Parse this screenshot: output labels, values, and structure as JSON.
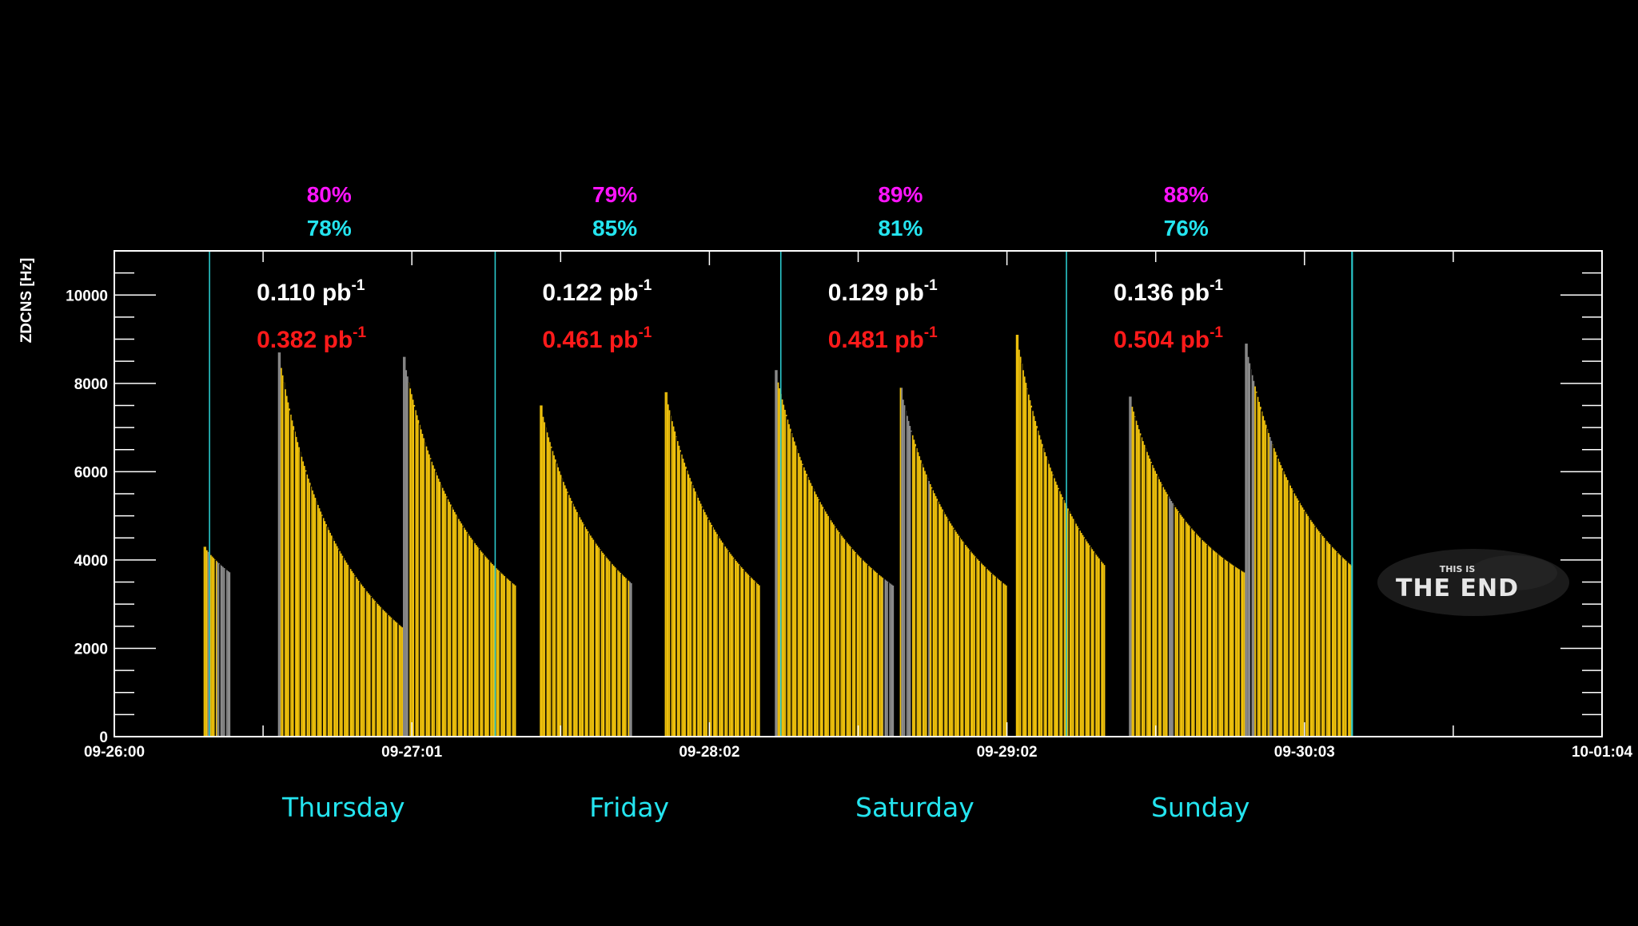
{
  "colors": {
    "background": "#000000",
    "axis": "#ffffff",
    "bar_physics": "#f0c20c",
    "bar_other": "#8c8c8c",
    "day_boundary": "#2ac8cc",
    "pct_top": "#ff14ff",
    "pct_bottom": "#24e4ef",
    "lumi_white": "#ffffff",
    "lumi_red": "#ff1a1a",
    "day_label": "#24e4ef"
  },
  "chart_data": {
    "type": "bar",
    "ylabel": "ZDCNS [Hz]",
    "xlabel": "",
    "ylim": [
      0,
      11000
    ],
    "y_ticks": [
      "0",
      "2000",
      "4000",
      "6000",
      "8000",
      "10000"
    ],
    "x_ticks": [
      "09-26:00",
      "09-27:01",
      "09-28:02",
      "09-29:02",
      "09-30:03",
      "10-01:04"
    ],
    "legend": "none",
    "grid": false,
    "days": [
      {
        "label": "Thursday",
        "pct_top": "80%",
        "pct_bottom": "78%",
        "lumi_white": "0.110",
        "lumi_red": "0.382",
        "unit": "pb",
        "unit_exp": "-1"
      },
      {
        "label": "Friday",
        "pct_top": "79%",
        "pct_bottom": "85%",
        "lumi_white": "0.122",
        "lumi_red": "0.461",
        "unit": "pb",
        "unit_exp": "-1"
      },
      {
        "label": "Saturday",
        "pct_top": "89%",
        "pct_bottom": "81%",
        "lumi_white": "0.129",
        "lumi_red": "0.481",
        "unit": "pb",
        "unit_exp": "-1"
      },
      {
        "label": "Sunday",
        "pct_top": "88%",
        "pct_bottom": "76%",
        "lumi_white": "0.136",
        "lumi_red": "0.504",
        "unit": "pb",
        "unit_exp": "-1"
      }
    ],
    "day_boundaries_days": [
      0.32,
      1.28,
      2.24,
      3.2,
      4.16
    ],
    "fills": [
      {
        "start": 0.3,
        "end": 0.39,
        "peak": 4300,
        "end_value": 3700,
        "gray": [
          [
            0.315,
            0.32
          ],
          [
            0.345,
            0.39
          ]
        ]
      },
      {
        "start": 0.55,
        "end": 0.97,
        "peak": 8700,
        "end_value": 2450,
        "gray": [
          [
            0.55,
            0.56
          ]
        ]
      },
      {
        "start": 0.97,
        "end": 1.35,
        "peak": 8600,
        "end_value": 3400,
        "gray": [
          [
            0.97,
            0.99
          ]
        ]
      },
      {
        "start": 1.43,
        "end": 1.74,
        "peak": 7500,
        "end_value": 3450,
        "gray": [
          [
            1.73,
            1.74
          ]
        ]
      },
      {
        "start": 1.85,
        "end": 2.17,
        "peak": 7800,
        "end_value": 3400,
        "gray": []
      },
      {
        "start": 2.22,
        "end": 2.62,
        "peak": 8300,
        "end_value": 3400,
        "gray": [
          [
            2.22,
            2.23
          ],
          [
            2.585,
            2.62
          ]
        ]
      },
      {
        "start": 2.64,
        "end": 3.0,
        "peak": 7900,
        "end_value": 3400,
        "gray": [
          [
            2.645,
            2.68
          ],
          [
            2.73,
            2.74
          ]
        ]
      },
      {
        "start": 3.03,
        "end": 3.33,
        "peak": 9100,
        "end_value": 3850,
        "gray": []
      },
      {
        "start": 3.41,
        "end": 3.8,
        "peak": 7700,
        "end_value": 3700,
        "gray": [
          [
            3.41,
            3.42
          ],
          [
            3.54,
            3.56
          ]
        ]
      },
      {
        "start": 3.8,
        "end": 4.16,
        "peak": 8900,
        "end_value": 3850,
        "gray": [
          [
            3.8,
            3.83
          ],
          [
            3.88,
            3.89
          ]
        ]
      }
    ],
    "annotation": {
      "small": "THIS IS",
      "big": "THE END"
    }
  }
}
